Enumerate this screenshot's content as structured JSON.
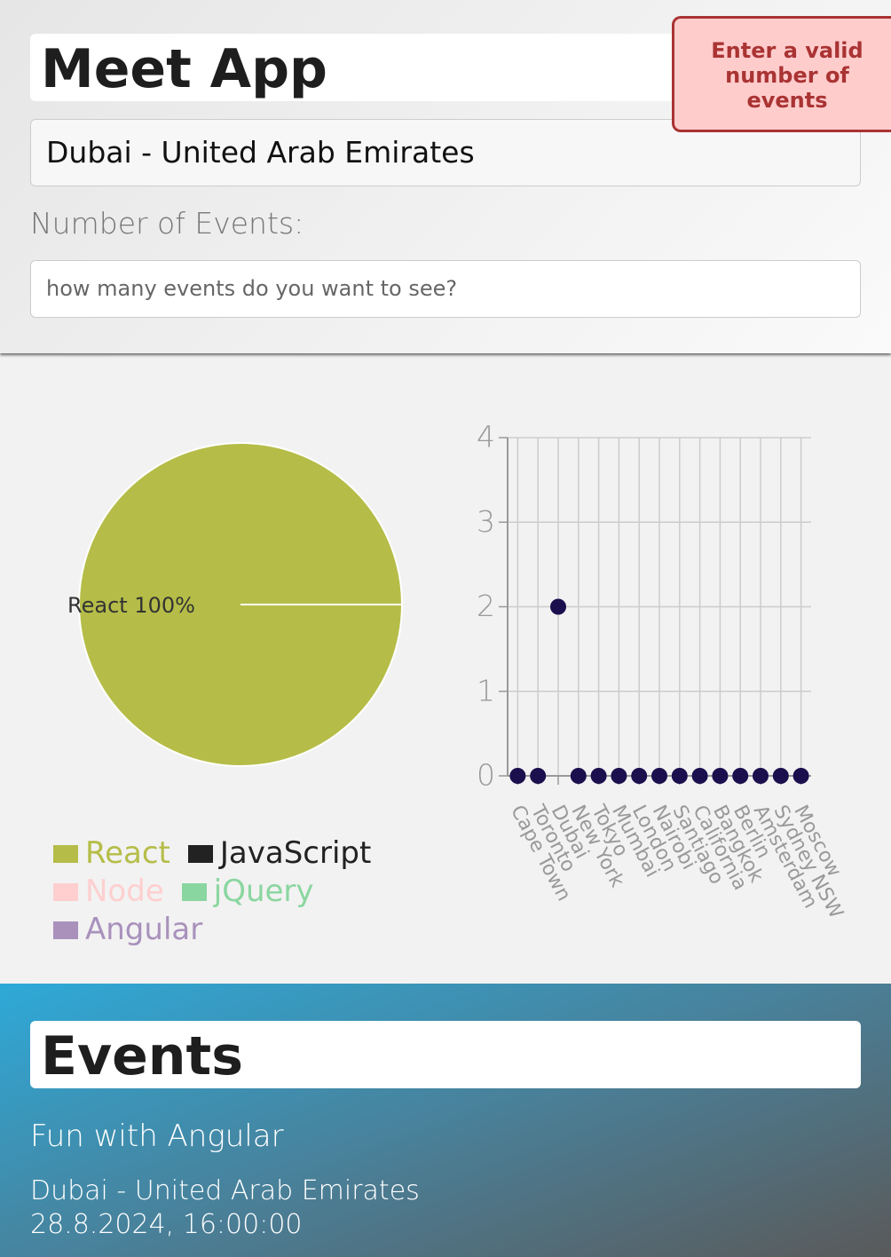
{
  "header": {
    "title": "Meet App",
    "city": "Dubai - United Arab Emirates",
    "events_label": "Number of Events:",
    "events_placeholder": "how many events do you want to see?",
    "alert": "Enter a valid number of events"
  },
  "chart_data": [
    {
      "type": "pie",
      "categories": [
        "React",
        "JavaScript",
        "Node",
        "jQuery",
        "Angular"
      ],
      "values": [
        100,
        0,
        0,
        0,
        0
      ],
      "value_labels": [
        "React 100%",
        null,
        null,
        null,
        null
      ],
      "colors": [
        "#b5bd48",
        "#222222",
        "#ffcfcf",
        "#8ad6a0",
        "#a991bc"
      ]
    },
    {
      "type": "scatter",
      "categories": [
        "Cape Town",
        "Toronto",
        "Dubai",
        "New York",
        "Tokyo",
        "Mumbai",
        "London",
        "Nairobi",
        "Santiago",
        "California",
        "Bangkok",
        "Berlin",
        "Amsterdam",
        "Sydney NSW",
        "Moscow"
      ],
      "values": [
        0,
        0,
        2,
        0,
        0,
        0,
        0,
        0,
        0,
        0,
        0,
        0,
        0,
        0,
        0
      ],
      "ylim": [
        0,
        4
      ],
      "yticks": [
        0,
        1,
        2,
        3,
        4
      ],
      "grid": true,
      "color": "#1b0f4d"
    }
  ],
  "events_heading": "Events",
  "events": [
    {
      "title": "Fun with Angular",
      "location": "Dubai - United Arab Emirates",
      "time": "28.8.2024, 16:00:00"
    }
  ]
}
